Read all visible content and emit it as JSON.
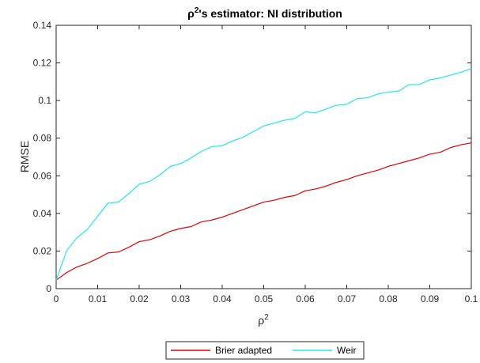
{
  "chart_data": {
    "type": "line",
    "title": {
      "symbol": "ρ",
      "sup": "2",
      "rest": "'s estimator: NI distribution"
    },
    "xlabel": {
      "symbol": "ρ",
      "sup": "2"
    },
    "ylabel": "RMSE",
    "xlim": [
      0,
      0.1
    ],
    "ylim": [
      0,
      0.14
    ],
    "xticks": [
      0,
      0.01,
      0.02,
      0.03,
      0.04,
      0.05,
      0.06,
      0.07,
      0.08,
      0.09,
      0.1
    ],
    "xtick_labels": [
      "0",
      "0.01",
      "0.02",
      "0.03",
      "0.04",
      "0.05",
      "0.06",
      "0.07",
      "0.08",
      "0.09",
      "0.1"
    ],
    "yticks": [
      0,
      0.02,
      0.04,
      0.06,
      0.08,
      0.1,
      0.12,
      0.14
    ],
    "ytick_labels": [
      "0",
      "0.02",
      "0.04",
      "0.06",
      "0.08",
      "0.1",
      "0.12",
      "0.14"
    ],
    "grid": false,
    "legend_position": "bottom-center",
    "x": [
      0,
      0.0025,
      0.005,
      0.0075,
      0.01,
      0.0125,
      0.015,
      0.0175,
      0.02,
      0.0225,
      0.025,
      0.0275,
      0.03,
      0.0325,
      0.035,
      0.0375,
      0.04,
      0.0425,
      0.045,
      0.0475,
      0.05,
      0.0525,
      0.055,
      0.0575,
      0.06,
      0.0625,
      0.065,
      0.0675,
      0.07,
      0.0725,
      0.075,
      0.0775,
      0.08,
      0.0825,
      0.085,
      0.0875,
      0.09,
      0.0925,
      0.095,
      0.0975,
      0.1
    ],
    "series": [
      {
        "name": "Brier adapted",
        "color": "#e00000",
        "values": [
          0.0045,
          0.0085,
          0.0115,
          0.0135,
          0.016,
          0.019,
          0.0195,
          0.022,
          0.025,
          0.026,
          0.028,
          0.0305,
          0.032,
          0.033,
          0.0355,
          0.0365,
          0.038,
          0.04,
          0.042,
          0.044,
          0.046,
          0.047,
          0.0485,
          0.0495,
          0.052,
          0.053,
          0.0545,
          0.0565,
          0.058,
          0.06,
          0.0615,
          0.063,
          0.065,
          0.0665,
          0.068,
          0.0695,
          0.0715,
          0.0725,
          0.075,
          0.0765,
          0.0775
        ]
      },
      {
        "name": "Weir",
        "color": "#22e5ef",
        "values": [
          0.0045,
          0.02,
          0.027,
          0.0315,
          0.0385,
          0.0455,
          0.046,
          0.0505,
          0.0555,
          0.057,
          0.0605,
          0.065,
          0.0665,
          0.0695,
          0.073,
          0.0755,
          0.076,
          0.0785,
          0.0805,
          0.0835,
          0.0865,
          0.088,
          0.0895,
          0.0905,
          0.094,
          0.0935,
          0.0955,
          0.0975,
          0.098,
          0.101,
          0.1015,
          0.1035,
          0.1045,
          0.105,
          0.1085,
          0.1085,
          0.111,
          0.112,
          0.1135,
          0.115,
          0.117
        ]
      }
    ]
  }
}
